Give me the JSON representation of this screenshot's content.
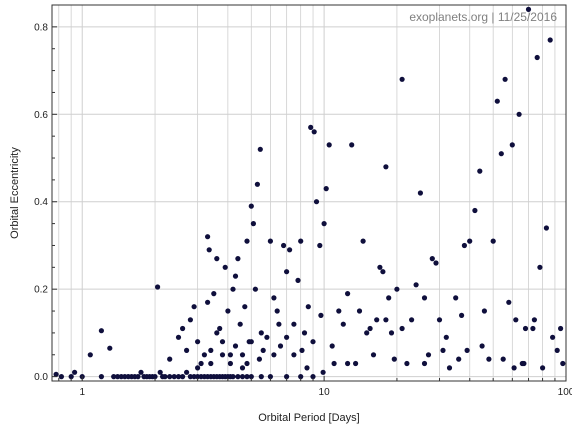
{
  "chart_data": {
    "type": "scatter",
    "title": "",
    "annotation": "exoplanets.org | 11/25/2016",
    "xlabel": "Orbital Period [Days]",
    "ylabel": "Orbital Eccentricity",
    "xscale": "log",
    "xlim": [
      0.75,
      100
    ],
    "ylim": [
      -0.01,
      0.85
    ],
    "xticks": [
      1,
      10,
      100
    ],
    "xtick_labels": [
      "1",
      "10",
      "100"
    ],
    "yticks": [
      0.0,
      0.2,
      0.4,
      0.6,
      0.8
    ],
    "ytick_labels": [
      "0.0",
      "0.2",
      "0.4",
      "0.6",
      "0.8"
    ],
    "grid": true,
    "legend": "none",
    "colors": {
      "points": "#0f0f3c",
      "grid": "#cfcfcf",
      "frame": "#333333"
    },
    "series": [
      {
        "points": [
          [
            0.78,
            0.005
          ],
          [
            0.82,
            0.0
          ],
          [
            0.9,
            0.0
          ],
          [
            0.93,
            0.01
          ],
          [
            1.0,
            0.0
          ],
          [
            1.08,
            0.05
          ],
          [
            1.2,
            0.105
          ],
          [
            1.3,
            0.065
          ],
          [
            1.2,
            0.0
          ],
          [
            1.35,
            0.0
          ],
          [
            1.4,
            0.0
          ],
          [
            1.45,
            0.0
          ],
          [
            1.5,
            0.0
          ],
          [
            1.55,
            0.0
          ],
          [
            1.6,
            0.0
          ],
          [
            1.65,
            0.0
          ],
          [
            1.7,
            0.0
          ],
          [
            1.75,
            0.01
          ],
          [
            1.8,
            0.0
          ],
          [
            1.85,
            0.0
          ],
          [
            1.9,
            0.0
          ],
          [
            1.95,
            0.0
          ],
          [
            2.0,
            0.0
          ],
          [
            2.05,
            0.205
          ],
          [
            2.1,
            0.01
          ],
          [
            2.15,
            0.0
          ],
          [
            2.2,
            0.0
          ],
          [
            2.3,
            0.0
          ],
          [
            2.4,
            0.0
          ],
          [
            2.5,
            0.0
          ],
          [
            2.6,
            0.0
          ],
          [
            2.7,
            0.01
          ],
          [
            2.8,
            0.0
          ],
          [
            2.9,
            0.0
          ],
          [
            3.0,
            0.0
          ],
          [
            3.1,
            0.0
          ],
          [
            3.2,
            0.0
          ],
          [
            3.3,
            0.0
          ],
          [
            3.4,
            0.0
          ],
          [
            3.5,
            0.0
          ],
          [
            3.6,
            0.0
          ],
          [
            3.7,
            0.0
          ],
          [
            3.8,
            0.0
          ],
          [
            3.9,
            0.0
          ],
          [
            4.0,
            0.0
          ],
          [
            4.1,
            0.0
          ],
          [
            4.2,
            0.0
          ],
          [
            4.4,
            0.0
          ],
          [
            4.6,
            0.0
          ],
          [
            4.8,
            0.0
          ],
          [
            5.0,
            0.0
          ],
          [
            5.5,
            0.0
          ],
          [
            6.0,
            0.0
          ],
          [
            7.0,
            0.0
          ],
          [
            8.0,
            0.0
          ],
          [
            9.0,
            0.0
          ],
          [
            2.3,
            0.04
          ],
          [
            2.5,
            0.09
          ],
          [
            2.6,
            0.11
          ],
          [
            2.7,
            0.06
          ],
          [
            2.8,
            0.13
          ],
          [
            2.9,
            0.16
          ],
          [
            3.0,
            0.08
          ],
          [
            3.1,
            0.03
          ],
          [
            3.2,
            0.05
          ],
          [
            3.3,
            0.32
          ],
          [
            3.35,
            0.29
          ],
          [
            3.4,
            0.06
          ],
          [
            3.5,
            0.19
          ],
          [
            3.6,
            0.27
          ],
          [
            3.7,
            0.11
          ],
          [
            3.8,
            0.05
          ],
          [
            3.9,
            0.25
          ],
          [
            4.0,
            0.15
          ],
          [
            4.1,
            0.03
          ],
          [
            4.2,
            0.2
          ],
          [
            4.3,
            0.23
          ],
          [
            4.4,
            0.27
          ],
          [
            4.5,
            0.12
          ],
          [
            4.6,
            0.05
          ],
          [
            4.7,
            0.16
          ],
          [
            4.8,
            0.31
          ],
          [
            4.9,
            0.08
          ],
          [
            5.0,
            0.39
          ],
          [
            5.1,
            0.35
          ],
          [
            5.2,
            0.2
          ],
          [
            5.3,
            0.44
          ],
          [
            5.45,
            0.52
          ],
          [
            5.6,
            0.06
          ],
          [
            5.8,
            0.09
          ],
          [
            6.0,
            0.31
          ],
          [
            6.2,
            0.18
          ],
          [
            6.4,
            0.15
          ],
          [
            6.6,
            0.07
          ],
          [
            6.8,
            0.3
          ],
          [
            7.0,
            0.24
          ],
          [
            7.2,
            0.29
          ],
          [
            7.5,
            0.05
          ],
          [
            7.8,
            0.22
          ],
          [
            8.0,
            0.31
          ],
          [
            8.3,
            0.1
          ],
          [
            8.6,
            0.16
          ],
          [
            8.8,
            0.57
          ],
          [
            9.1,
            0.56
          ],
          [
            9.3,
            0.4
          ],
          [
            9.6,
            0.3
          ],
          [
            10.0,
            0.35
          ],
          [
            10.2,
            0.43
          ],
          [
            10.5,
            0.53
          ],
          [
            9.7,
            0.14
          ],
          [
            10.8,
            0.07
          ],
          [
            11.5,
            0.15
          ],
          [
            12.0,
            0.12
          ],
          [
            12.5,
            0.19
          ],
          [
            13.0,
            0.53
          ],
          [
            13.5,
            0.03
          ],
          [
            14.0,
            0.15
          ],
          [
            14.5,
            0.31
          ],
          [
            15.0,
            0.1
          ],
          [
            16.0,
            0.05
          ],
          [
            17.0,
            0.25
          ],
          [
            17.5,
            0.24
          ],
          [
            18.0,
            0.48
          ],
          [
            18.5,
            0.18
          ],
          [
            19.0,
            0.1
          ],
          [
            19.5,
            0.04
          ],
          [
            20.0,
            0.2
          ],
          [
            21.0,
            0.68
          ],
          [
            22.0,
            0.03
          ],
          [
            23.0,
            0.13
          ],
          [
            24.0,
            0.21
          ],
          [
            25.0,
            0.42
          ],
          [
            26.0,
            0.18
          ],
          [
            27.0,
            0.05
          ],
          [
            28.0,
            0.27
          ],
          [
            29.0,
            0.26
          ],
          [
            30.0,
            0.13
          ],
          [
            31.0,
            0.06
          ],
          [
            33.0,
            0.02
          ],
          [
            35.0,
            0.18
          ],
          [
            36.0,
            0.04
          ],
          [
            37.0,
            0.14
          ],
          [
            38.0,
            0.3
          ],
          [
            40.0,
            0.31
          ],
          [
            42.0,
            0.38
          ],
          [
            44.0,
            0.47
          ],
          [
            46.0,
            0.15
          ],
          [
            48.0,
            0.04
          ],
          [
            50.0,
            0.31
          ],
          [
            52.0,
            0.63
          ],
          [
            54.0,
            0.51
          ],
          [
            56.0,
            0.68
          ],
          [
            58.0,
            0.17
          ],
          [
            60.0,
            0.53
          ],
          [
            62.0,
            0.13
          ],
          [
            64.0,
            0.6
          ],
          [
            66.0,
            0.03
          ],
          [
            68.0,
            0.11
          ],
          [
            70.0,
            0.84
          ],
          [
            73.0,
            0.11
          ],
          [
            76.0,
            0.73
          ],
          [
            78.0,
            0.25
          ],
          [
            80.0,
            0.02
          ],
          [
            83.0,
            0.34
          ],
          [
            86.0,
            0.77
          ],
          [
            88.0,
            0.09
          ],
          [
            92.0,
            0.06
          ],
          [
            95.0,
            0.11
          ],
          [
            97.0,
            0.03
          ],
          [
            3.3,
            0.17
          ],
          [
            3.6,
            0.1
          ],
          [
            4.3,
            0.07
          ],
          [
            4.6,
            0.02
          ],
          [
            5.0,
            0.08
          ],
          [
            5.5,
            0.1
          ],
          [
            6.2,
            0.05
          ],
          [
            7.5,
            0.12
          ],
          [
            8.5,
            0.02
          ],
          [
            9.0,
            0.08
          ],
          [
            11.0,
            0.03
          ],
          [
            12.5,
            0.03
          ],
          [
            15.5,
            0.11
          ],
          [
            16.5,
            0.13
          ],
          [
            18.0,
            0.13
          ],
          [
            21.0,
            0.11
          ],
          [
            26.0,
            0.03
          ],
          [
            32.0,
            0.09
          ],
          [
            39.0,
            0.06
          ],
          [
            45.0,
            0.07
          ],
          [
            55.0,
            0.04
          ],
          [
            61.0,
            0.02
          ],
          [
            67.0,
            0.03
          ],
          [
            74.0,
            0.13
          ],
          [
            3.0,
            0.02
          ],
          [
            3.4,
            0.03
          ],
          [
            3.8,
            0.08
          ],
          [
            4.1,
            0.05
          ],
          [
            4.8,
            0.03
          ],
          [
            5.4,
            0.04
          ],
          [
            6.5,
            0.12
          ],
          [
            7.0,
            0.09
          ],
          [
            8.1,
            0.06
          ],
          [
            9.9,
            0.01
          ]
        ]
      }
    ]
  }
}
